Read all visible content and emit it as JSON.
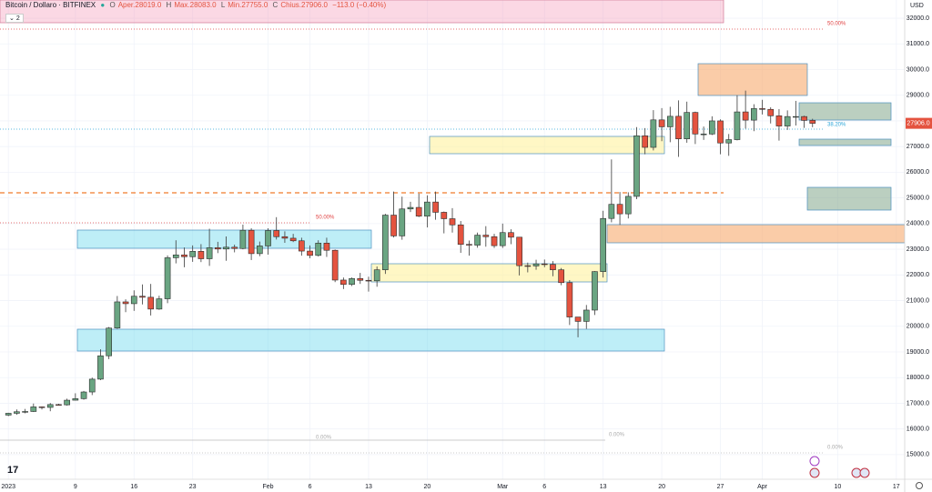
{
  "header": {
    "symbol": "Bitcoin / Dollaro · BITFINEX",
    "o": "O",
    "open": "Aper.28019.0",
    "h": "H",
    "high": "Max.28083.0",
    "l": "L",
    "low": "Min.27755.0",
    "c": "C",
    "close": "Chius.27906.0",
    "change": "−113.0 (−0.40%)",
    "indicators": "2"
  },
  "fib_labels": [
    "50.00%",
    "50.00%",
    "38.20%",
    "0.00%",
    "0.00%",
    "0.00%"
  ],
  "chart_data": {
    "type": "candlestick",
    "axis_unit": "USD",
    "price_label": "27906.0",
    "up_color": "#6aa582",
    "down_color": "#e4533f",
    "xlim": [
      "2022-12-31",
      "2023-04-18"
    ],
    "xticks": [
      {
        "value": "2023-01-01",
        "label": "2023"
      },
      {
        "value": "2023-01-09",
        "label": "9"
      },
      {
        "value": "2023-01-16",
        "label": "16"
      },
      {
        "value": "2023-01-23",
        "label": "23"
      },
      {
        "value": "2023-02-01",
        "label": "Feb"
      },
      {
        "value": "2023-02-06",
        "label": "6"
      },
      {
        "value": "2023-02-13",
        "label": "13"
      },
      {
        "value": "2023-02-20",
        "label": "20"
      },
      {
        "value": "2023-03-01",
        "label": "Mar"
      },
      {
        "value": "2023-03-06",
        "label": "6"
      },
      {
        "value": "2023-03-13",
        "label": "13"
      },
      {
        "value": "2023-03-20",
        "label": "20"
      },
      {
        "value": "2023-03-27",
        "label": "27"
      },
      {
        "value": "2023-04-01",
        "label": "Apr"
      },
      {
        "value": "2023-04-10",
        "label": "10"
      },
      {
        "value": "2023-04-17",
        "label": "17"
      }
    ],
    "ylim": [
      14040,
      32710
    ],
    "yticks": [
      {
        "value": 15000,
        "label": "15000.0"
      },
      {
        "value": 16000,
        "label": "16000.0"
      },
      {
        "value": 17000,
        "label": "17000.0"
      },
      {
        "value": 18000,
        "label": "18000.0"
      },
      {
        "value": 19000,
        "label": "19000.0"
      },
      {
        "value": 20000,
        "label": "20000.0"
      },
      {
        "value": 21000,
        "label": "21000.0"
      },
      {
        "value": 22000,
        "label": "22000.0"
      },
      {
        "value": 23000,
        "label": "23000.0"
      },
      {
        "value": 24000,
        "label": "24000.0"
      },
      {
        "value": 25000,
        "label": "25000.0"
      },
      {
        "value": 26000,
        "label": "26000.0"
      },
      {
        "value": 27000,
        "label": "27000.0"
      },
      {
        "value": 28000,
        "label": "28000.0"
      },
      {
        "value": 29000,
        "label": "29000.0"
      },
      {
        "value": 30000,
        "label": "30000.0"
      },
      {
        "value": 31000,
        "label": "31000.0"
      },
      {
        "value": 32000,
        "label": "32000.0"
      }
    ],
    "grid": true,
    "x": [
      "2023-01-01",
      "2023-01-02",
      "2023-01-03",
      "2023-01-04",
      "2023-01-05",
      "2023-01-06",
      "2023-01-07",
      "2023-01-08",
      "2023-01-09",
      "2023-01-10",
      "2023-01-11",
      "2023-01-12",
      "2023-01-13",
      "2023-01-14",
      "2023-01-15",
      "2023-01-16",
      "2023-01-17",
      "2023-01-18",
      "2023-01-19",
      "2023-01-20",
      "2023-01-21",
      "2023-01-22",
      "2023-01-23",
      "2023-01-24",
      "2023-01-25",
      "2023-01-26",
      "2023-01-27",
      "2023-01-28",
      "2023-01-29",
      "2023-01-30",
      "2023-01-31",
      "2023-02-01",
      "2023-02-02",
      "2023-02-03",
      "2023-02-04",
      "2023-02-05",
      "2023-02-06",
      "2023-02-07",
      "2023-02-08",
      "2023-02-09",
      "2023-02-10",
      "2023-02-11",
      "2023-02-12",
      "2023-02-13",
      "2023-02-14",
      "2023-02-15",
      "2023-02-16",
      "2023-02-17",
      "2023-02-18",
      "2023-02-19",
      "2023-02-20",
      "2023-02-21",
      "2023-02-22",
      "2023-02-23",
      "2023-02-24",
      "2023-02-25",
      "2023-02-26",
      "2023-02-27",
      "2023-02-28",
      "2023-03-01",
      "2023-03-02",
      "2023-03-03",
      "2023-03-04",
      "2023-03-05",
      "2023-03-06",
      "2023-03-07",
      "2023-03-08",
      "2023-03-09",
      "2023-03-10",
      "2023-03-11",
      "2023-03-12",
      "2023-03-13",
      "2023-03-14",
      "2023-03-15",
      "2023-03-16",
      "2023-03-17",
      "2023-03-18",
      "2023-03-19",
      "2023-03-20",
      "2023-03-21",
      "2023-03-22",
      "2023-03-23",
      "2023-03-24",
      "2023-03-25",
      "2023-03-26",
      "2023-03-27",
      "2023-03-28",
      "2023-03-29",
      "2023-03-30",
      "2023-03-31",
      "2023-04-01",
      "2023-04-02",
      "2023-04-03",
      "2023-04-04",
      "2023-04-05",
      "2023-04-06",
      "2023-04-07"
    ],
    "open": [
      16540,
      16610,
      16670,
      16680,
      16860,
      16840,
      16950,
      16940,
      17120,
      17180,
      17440,
      17940,
      18850,
      19930,
      20950,
      20880,
      21170,
      21130,
      20670,
      21070,
      22670,
      22780,
      22710,
      22920,
      22630,
      23060,
      23010,
      23080,
      23030,
      23740,
      22830,
      23130,
      23730,
      23490,
      23430,
      23330,
      22930,
      22760,
      23240,
      22960,
      21800,
      21630,
      21860,
      21790,
      21770,
      22200,
      24330,
      23520,
      24570,
      24630,
      24290,
      24840,
      24440,
      24190,
      23950,
      23190,
      23160,
      23550,
      23490,
      23140,
      23650,
      23470,
      22360,
      22350,
      22430,
      22410,
      22200,
      21700,
      20360,
      20190,
      20630,
      22130,
      24200,
      24750,
      24380,
      25060,
      27420,
      26970,
      28040,
      27770,
      28180,
      27300,
      28330,
      27490,
      27490,
      28000,
      27140,
      27270,
      28350,
      28030,
      28480,
      28450,
      28200,
      27800,
      28170,
      28170,
      28019
    ],
    "high": [
      16630,
      16760,
      16780,
      16990,
      16880,
      17010,
      16980,
      17180,
      17390,
      17480,
      18000,
      19100,
      19970,
      21180,
      21050,
      21400,
      21630,
      21650,
      21190,
      22760,
      23350,
      23070,
      23150,
      23200,
      23800,
      23290,
      23500,
      23180,
      23960,
      23820,
      23300,
      23820,
      24250,
      23700,
      23600,
      23450,
      23150,
      23350,
      23450,
      22990,
      21900,
      21900,
      22080,
      21930,
      22330,
      24380,
      25250,
      25050,
      24850,
      25170,
      25100,
      25250,
      24470,
      24600,
      24100,
      23340,
      23650,
      23900,
      23600,
      24000,
      23780,
      23470,
      22480,
      22590,
      22600,
      22540,
      22270,
      21800,
      20300,
      20830,
      22150,
      24500,
      26500,
      25230,
      25220,
      27760,
      27720,
      28420,
      28500,
      28550,
      28800,
      28750,
      28360,
      27780,
      28180,
      28060,
      27490,
      29000,
      29180,
      28650,
      28820,
      28530,
      28460,
      28410,
      28780,
      28200,
      28083
    ],
    "low": [
      16500,
      16550,
      16610,
      16660,
      16760,
      16690,
      16910,
      16910,
      17110,
      17140,
      17320,
      17900,
      18720,
      19900,
      20550,
      20600,
      20850,
      20420,
      20640,
      20900,
      22450,
      22300,
      22510,
      22500,
      22350,
      22850,
      22550,
      22880,
      23000,
      22580,
      22730,
      22790,
      23380,
      23250,
      23280,
      22750,
      22650,
      22720,
      22700,
      21720,
      21450,
      21570,
      21650,
      21350,
      21540,
      22040,
      23460,
      23370,
      24450,
      24250,
      23850,
      24150,
      23620,
      23650,
      22860,
      22750,
      23060,
      23100,
      23050,
      23050,
      23200,
      21980,
      22100,
      22200,
      22300,
      21950,
      21600,
      20050,
      19570,
      19900,
      20440,
      21900,
      24050,
      23950,
      24200,
      24950,
      26700,
      26850,
      27210,
      27170,
      26600,
      27150,
      27100,
      27260,
      27450,
      26700,
      26640,
      27240,
      27700,
      27600,
      28250,
      27900,
      27230,
      27650,
      27820,
      27730,
      27755
    ],
    "close": [
      16610,
      16670,
      16680,
      16860,
      16840,
      16950,
      16940,
      17120,
      17180,
      17440,
      17940,
      18850,
      19930,
      20950,
      20880,
      21170,
      21130,
      20670,
      21070,
      22670,
      22780,
      22710,
      22920,
      22630,
      23060,
      23010,
      23080,
      23030,
      23740,
      22830,
      23130,
      23730,
      23490,
      23430,
      23330,
      22930,
      22760,
      23240,
      22960,
      21800,
      21630,
      21860,
      21790,
      21770,
      22200,
      24330,
      23520,
      24570,
      24630,
      24290,
      24840,
      24440,
      24190,
      23950,
      23190,
      23160,
      23550,
      23490,
      23140,
      23650,
      23470,
      22360,
      22350,
      22430,
      22410,
      22200,
      21700,
      20360,
      20190,
      20630,
      22130,
      24200,
      24750,
      24380,
      25060,
      27420,
      26970,
      28040,
      27770,
      28180,
      27300,
      28330,
      27490,
      27490,
      28000,
      27140,
      27270,
      28350,
      28030,
      28480,
      28450,
      28200,
      27800,
      28170,
      28170,
      28019,
      27906
    ]
  }
}
